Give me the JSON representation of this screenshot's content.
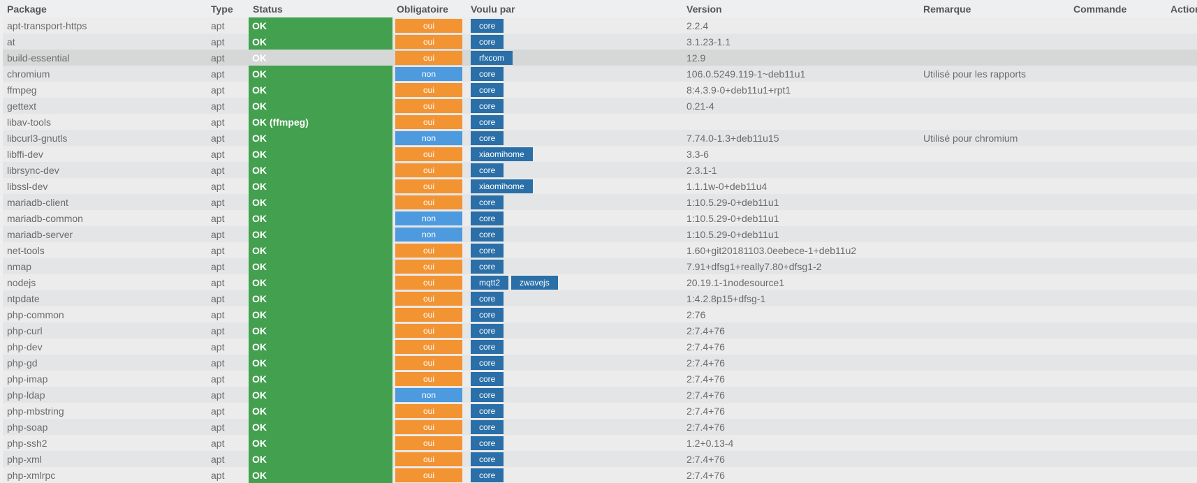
{
  "columns": [
    "Package",
    "Type",
    "Status",
    "Obligatoire",
    "Voulu par",
    "Version",
    "Remarque",
    "Commande",
    "Action"
  ],
  "colors": {
    "status_ok": "#43a04f",
    "oui": "#f39433",
    "non": "#4d9ade",
    "voulu_par": "#2a6fa8",
    "highlight_row": "#d6d8d7"
  },
  "highlighted_row": "build-essential",
  "rows": [
    {
      "package": "apt-transport-https",
      "type": "apt",
      "status": "OK",
      "oblig": "oui",
      "voulu": [
        "core"
      ],
      "version": "2.2.4",
      "remarque": ""
    },
    {
      "package": "at",
      "type": "apt",
      "status": "OK",
      "oblig": "oui",
      "voulu": [
        "core"
      ],
      "version": "3.1.23-1.1",
      "remarque": ""
    },
    {
      "package": "build-essential",
      "type": "apt",
      "status": "OK",
      "oblig": "oui",
      "voulu": [
        "rfxcom"
      ],
      "version": "12.9",
      "remarque": ""
    },
    {
      "package": "chromium",
      "type": "apt",
      "status": "OK",
      "oblig": "non",
      "voulu": [
        "core"
      ],
      "version": "106.0.5249.119-1~deb11u1",
      "remarque": "Utilisé pour les rapports"
    },
    {
      "package": "ffmpeg",
      "type": "apt",
      "status": "OK",
      "oblig": "oui",
      "voulu": [
        "core"
      ],
      "version": "8:4.3.9-0+deb11u1+rpt1",
      "remarque": ""
    },
    {
      "package": "gettext",
      "type": "apt",
      "status": "OK",
      "oblig": "oui",
      "voulu": [
        "core"
      ],
      "version": "0.21-4",
      "remarque": ""
    },
    {
      "package": "libav-tools",
      "type": "apt",
      "status": "OK (ffmpeg)",
      "oblig": "oui",
      "voulu": [
        "core"
      ],
      "version": "",
      "remarque": ""
    },
    {
      "package": "libcurl3-gnutls",
      "type": "apt",
      "status": "OK",
      "oblig": "non",
      "voulu": [
        "core"
      ],
      "version": "7.74.0-1.3+deb11u15",
      "remarque": "Utilisé pour chromium"
    },
    {
      "package": "libffi-dev",
      "type": "apt",
      "status": "OK",
      "oblig": "oui",
      "voulu": [
        "xiaomihome"
      ],
      "version": "3.3-6",
      "remarque": ""
    },
    {
      "package": "librsync-dev",
      "type": "apt",
      "status": "OK",
      "oblig": "oui",
      "voulu": [
        "core"
      ],
      "version": "2.3.1-1",
      "remarque": ""
    },
    {
      "package": "libssl-dev",
      "type": "apt",
      "status": "OK",
      "oblig": "oui",
      "voulu": [
        "xiaomihome"
      ],
      "version": "1.1.1w-0+deb11u4",
      "remarque": ""
    },
    {
      "package": "mariadb-client",
      "type": "apt",
      "status": "OK",
      "oblig": "oui",
      "voulu": [
        "core"
      ],
      "version": "1:10.5.29-0+deb11u1",
      "remarque": ""
    },
    {
      "package": "mariadb-common",
      "type": "apt",
      "status": "OK",
      "oblig": "non",
      "voulu": [
        "core"
      ],
      "version": "1:10.5.29-0+deb11u1",
      "remarque": ""
    },
    {
      "package": "mariadb-server",
      "type": "apt",
      "status": "OK",
      "oblig": "non",
      "voulu": [
        "core"
      ],
      "version": "1:10.5.29-0+deb11u1",
      "remarque": ""
    },
    {
      "package": "net-tools",
      "type": "apt",
      "status": "OK",
      "oblig": "oui",
      "voulu": [
        "core"
      ],
      "version": "1.60+git20181103.0eebece-1+deb11u2",
      "remarque": ""
    },
    {
      "package": "nmap",
      "type": "apt",
      "status": "OK",
      "oblig": "oui",
      "voulu": [
        "core"
      ],
      "version": "7.91+dfsg1+really7.80+dfsg1-2",
      "remarque": ""
    },
    {
      "package": "nodejs",
      "type": "apt",
      "status": "OK",
      "oblig": "oui",
      "voulu": [
        "mqtt2",
        "zwavejs"
      ],
      "version": "20.19.1-1nodesource1",
      "remarque": ""
    },
    {
      "package": "ntpdate",
      "type": "apt",
      "status": "OK",
      "oblig": "oui",
      "voulu": [
        "core"
      ],
      "version": "1:4.2.8p15+dfsg-1",
      "remarque": ""
    },
    {
      "package": "php-common",
      "type": "apt",
      "status": "OK",
      "oblig": "oui",
      "voulu": [
        "core"
      ],
      "version": "2:76",
      "remarque": ""
    },
    {
      "package": "php-curl",
      "type": "apt",
      "status": "OK",
      "oblig": "oui",
      "voulu": [
        "core"
      ],
      "version": "2:7.4+76",
      "remarque": ""
    },
    {
      "package": "php-dev",
      "type": "apt",
      "status": "OK",
      "oblig": "oui",
      "voulu": [
        "core"
      ],
      "version": "2:7.4+76",
      "remarque": ""
    },
    {
      "package": "php-gd",
      "type": "apt",
      "status": "OK",
      "oblig": "oui",
      "voulu": [
        "core"
      ],
      "version": "2:7.4+76",
      "remarque": ""
    },
    {
      "package": "php-imap",
      "type": "apt",
      "status": "OK",
      "oblig": "oui",
      "voulu": [
        "core"
      ],
      "version": "2:7.4+76",
      "remarque": ""
    },
    {
      "package": "php-ldap",
      "type": "apt",
      "status": "OK",
      "oblig": "non",
      "voulu": [
        "core"
      ],
      "version": "2:7.4+76",
      "remarque": ""
    },
    {
      "package": "php-mbstring",
      "type": "apt",
      "status": "OK",
      "oblig": "oui",
      "voulu": [
        "core"
      ],
      "version": "2:7.4+76",
      "remarque": ""
    },
    {
      "package": "php-soap",
      "type": "apt",
      "status": "OK",
      "oblig": "oui",
      "voulu": [
        "core"
      ],
      "version": "2:7.4+76",
      "remarque": ""
    },
    {
      "package": "php-ssh2",
      "type": "apt",
      "status": "OK",
      "oblig": "oui",
      "voulu": [
        "core"
      ],
      "version": "1.2+0.13-4",
      "remarque": ""
    },
    {
      "package": "php-xml",
      "type": "apt",
      "status": "OK",
      "oblig": "oui",
      "voulu": [
        "core"
      ],
      "version": "2:7.4+76",
      "remarque": ""
    },
    {
      "package": "php-xmlrpc",
      "type": "apt",
      "status": "OK",
      "oblig": "oui",
      "voulu": [
        "core"
      ],
      "version": "2:7.4+76",
      "remarque": ""
    }
  ]
}
